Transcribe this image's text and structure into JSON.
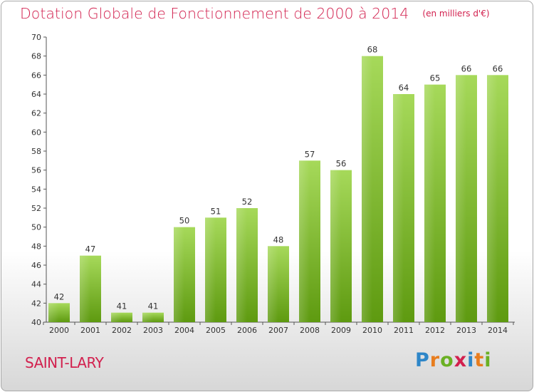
{
  "title": "Dotation Globale de Fonctionnement de 2000 à 2014",
  "unit_note": "(en milliers d'€)",
  "commune": "SAINT-LARY",
  "brand": {
    "text": "Proxiti",
    "letters": [
      "P",
      "r",
      "o",
      "x",
      "i",
      "t",
      "i"
    ],
    "letter_colors": [
      "#2e86c8",
      "#e87d1e",
      "#6ab023",
      "#d2204e",
      "#2e86c8",
      "#e87d1e",
      "#6ab023"
    ]
  },
  "colors": {
    "title": "#d2204e",
    "bar_light": "#a6d95a",
    "bar_dark": "#5e9a10",
    "axis": "#555555"
  },
  "chart_data": {
    "type": "bar",
    "title": "Dotation Globale de Fonctionnement de 2000 à 2014",
    "subtitle": "(en milliers d'€)",
    "categories": [
      "2000",
      "2001",
      "2002",
      "2003",
      "2004",
      "2005",
      "2006",
      "2007",
      "2008",
      "2009",
      "2010",
      "2011",
      "2012",
      "2013",
      "2014"
    ],
    "values": [
      42,
      47,
      41,
      41,
      50,
      51,
      52,
      48,
      57,
      56,
      68,
      64,
      65,
      66,
      66
    ],
    "ylim": [
      40,
      70
    ],
    "yticks": [
      40,
      42,
      44,
      46,
      48,
      50,
      52,
      54,
      56,
      58,
      60,
      62,
      64,
      66,
      68,
      70
    ],
    "xlabel": "",
    "ylabel": "",
    "grid": false,
    "data_labels": true
  }
}
